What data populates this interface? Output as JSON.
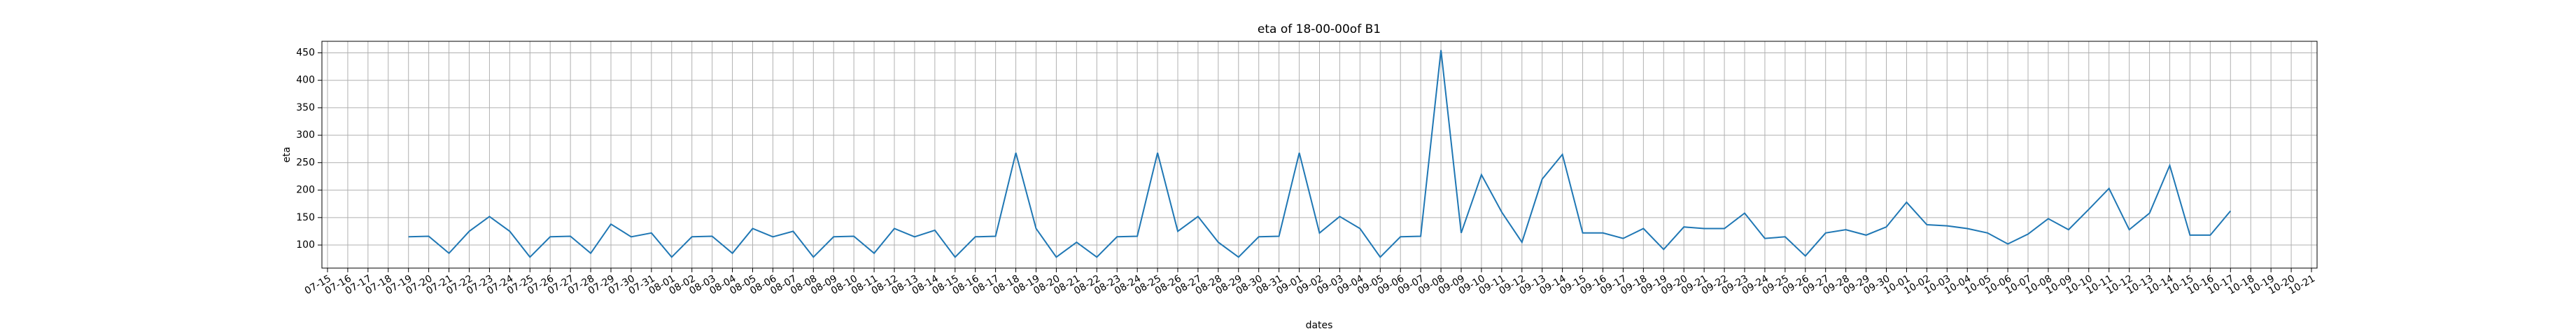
{
  "chart_data": {
    "type": "line",
    "title": "eta of 18-00-00of B1",
    "x_label": "dates",
    "y_label": "eta",
    "x": [
      "07-15",
      "07-16",
      "07-17",
      "07-18",
      "07-19",
      "07-20",
      "07-21",
      "07-22",
      "07-23",
      "07-24",
      "07-25",
      "07-26",
      "07-27",
      "07-28",
      "07-29",
      "07-30",
      "07-31",
      "08-01",
      "08-02",
      "08-03",
      "08-04",
      "08-05",
      "08-06",
      "08-07",
      "08-08",
      "08-09",
      "08-10",
      "08-11",
      "08-12",
      "08-13",
      "08-14",
      "08-15",
      "08-16",
      "08-17",
      "08-18",
      "08-19",
      "08-20",
      "08-21",
      "08-22",
      "08-23",
      "08-24",
      "08-25",
      "08-26",
      "08-27",
      "08-28",
      "08-29",
      "08-30",
      "08-31",
      "09-01",
      "09-02",
      "09-03",
      "09-04",
      "09-05",
      "09-06",
      "09-07",
      "09-08",
      "09-09",
      "09-10",
      "09-11",
      "09-12",
      "09-13",
      "09-14",
      "09-15",
      "09-16",
      "09-17",
      "09-18",
      "09-19",
      "09-20",
      "09-21",
      "09-22",
      "09-23",
      "09-24",
      "09-25",
      "09-26",
      "09-27",
      "09-28",
      "09-29",
      "09-30",
      "10-01",
      "10-02",
      "10-03",
      "10-04",
      "10-05",
      "10-06",
      "10-07",
      "10-08",
      "10-09",
      "10-10",
      "10-11",
      "10-12",
      "10-13",
      "10-14",
      "10-15",
      "10-16",
      "10-17",
      "10-18",
      "10-19",
      "10-20",
      "10-21"
    ],
    "values": [
      null,
      null,
      null,
      null,
      115,
      116,
      85,
      125,
      152,
      125,
      78,
      115,
      116,
      85,
      138,
      115,
      122,
      78,
      115,
      116,
      85,
      130,
      115,
      125,
      78,
      115,
      116,
      85,
      130,
      115,
      127,
      78,
      115,
      116,
      268,
      130,
      78,
      105,
      78,
      115,
      116,
      268,
      125,
      152,
      105,
      78,
      115,
      116,
      268,
      122,
      152,
      130,
      78,
      115,
      116,
      455,
      122,
      228,
      160,
      105,
      220,
      265,
      122,
      122,
      112,
      130,
      92,
      133,
      130,
      130,
      158,
      112,
      115,
      80,
      122,
      128,
      118,
      133,
      178,
      137,
      135,
      130,
      122,
      102,
      120,
      148,
      128,
      165,
      203,
      128,
      158,
      245,
      118,
      118,
      162,
      null,
      null,
      null,
      null
    ],
    "color": "#1f77b4",
    "ylim": [
      58,
      471
    ],
    "yticks": [
      100,
      150,
      200,
      250,
      300,
      350,
      400,
      450
    ],
    "grid": true
  }
}
